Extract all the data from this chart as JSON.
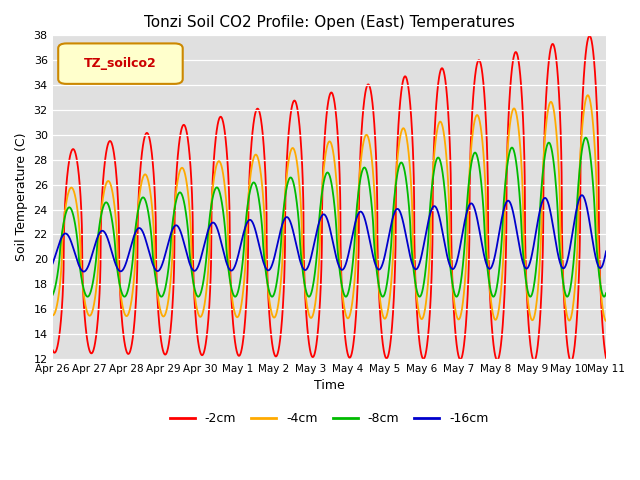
{
  "title": "Tonzi Soil CO2 Profile: Open (East) Temperatures",
  "xlabel": "Time",
  "ylabel": "Soil Temperature (C)",
  "ylim": [
    12,
    38
  ],
  "xlim": [
    0,
    15
  ],
  "legend_label": "TZ_soilco2",
  "series_labels": [
    "-2cm",
    "-4cm",
    "-8cm",
    "-16cm"
  ],
  "series_colors": [
    "#ff0000",
    "#ffaa00",
    "#00bb00",
    "#0000cc"
  ],
  "xtick_labels": [
    "Apr 26",
    "Apr 27",
    "Apr 28",
    "Apr 29",
    "Apr 30",
    "May 1",
    "May 2",
    "May 3",
    "May 4",
    "May 5",
    "May 6",
    "May 7",
    "May 8",
    "May 9",
    "May 10",
    "May 11"
  ],
  "ytick_values": [
    12,
    14,
    16,
    18,
    20,
    22,
    24,
    26,
    28,
    30,
    32,
    34,
    36,
    38
  ]
}
